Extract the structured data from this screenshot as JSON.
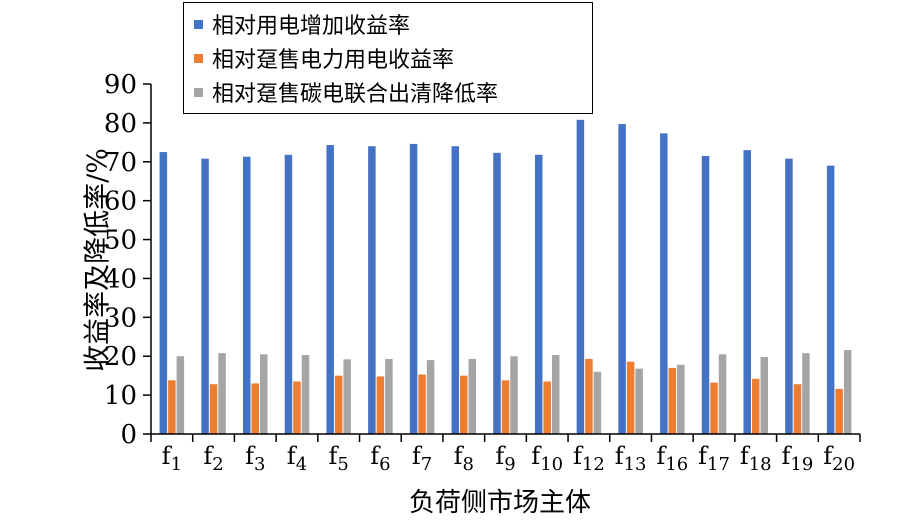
{
  "chart_data": {
    "type": "bar",
    "title": "",
    "xlabel": "负荷侧市场主体",
    "ylabel": "收益率及降低率/%",
    "ylim": [
      0,
      90
    ],
    "yticks": [
      0,
      10,
      20,
      30,
      40,
      50,
      60,
      70,
      80,
      90
    ],
    "legend_position": "top-center",
    "categories": [
      {
        "base": "f",
        "sub": "1"
      },
      {
        "base": "f",
        "sub": "2"
      },
      {
        "base": "f",
        "sub": "3"
      },
      {
        "base": "f",
        "sub": "4"
      },
      {
        "base": "f",
        "sub": "5"
      },
      {
        "base": "f",
        "sub": "6"
      },
      {
        "base": "f",
        "sub": "7"
      },
      {
        "base": "f",
        "sub": "8"
      },
      {
        "base": "f",
        "sub": "9"
      },
      {
        "base": "f",
        "sub": "10"
      },
      {
        "base": "f",
        "sub": "12"
      },
      {
        "base": "f",
        "sub": "13"
      },
      {
        "base": "f",
        "sub": "16"
      },
      {
        "base": "f",
        "sub": "17"
      },
      {
        "base": "f",
        "sub": "18"
      },
      {
        "base": "f",
        "sub": "19"
      },
      {
        "base": "f",
        "sub": "20"
      }
    ],
    "series": [
      {
        "name": "相对用电增加收益率",
        "color": "#4472C4",
        "values": [
          72.5,
          70.8,
          71.3,
          71.8,
          74.3,
          74.0,
          74.6,
          74.0,
          72.3,
          71.8,
          80.8,
          79.7,
          77.3,
          71.5,
          73.0,
          70.8,
          69.0
        ]
      },
      {
        "name": "相对趸售电力用电收益率",
        "color": "#ED7D31",
        "values": [
          13.8,
          12.8,
          13.0,
          13.5,
          15.0,
          14.8,
          15.3,
          15.0,
          13.8,
          13.5,
          19.3,
          18.6,
          17.0,
          13.2,
          14.2,
          12.8,
          11.6
        ]
      },
      {
        "name": "相对趸售碳电联合出清降低率",
        "color": "#A5A5A5",
        "values": [
          20.0,
          20.8,
          20.5,
          20.3,
          19.2,
          19.3,
          19.0,
          19.3,
          20.0,
          20.3,
          16.0,
          16.8,
          17.8,
          20.5,
          19.8,
          20.8,
          21.6
        ]
      }
    ]
  }
}
